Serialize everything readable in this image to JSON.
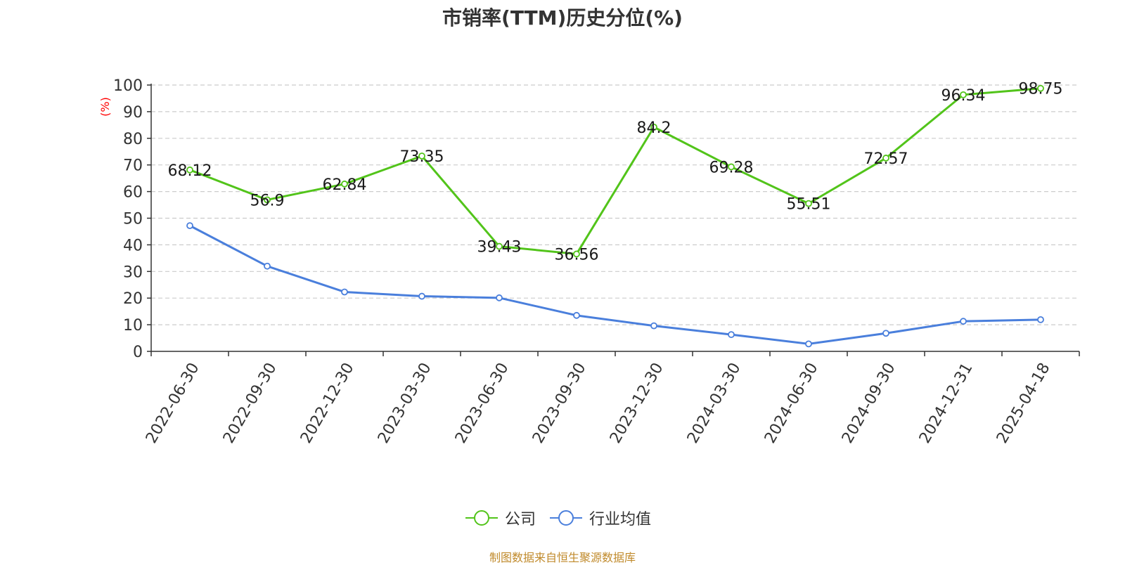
{
  "chart_data": {
    "type": "line",
    "title": "市销率(TTM)历史分位(%)",
    "ylabel": "(%)",
    "ylim": [
      0,
      100
    ],
    "yticks": [
      0,
      10,
      20,
      30,
      40,
      50,
      60,
      70,
      80,
      90,
      100
    ],
    "categories": [
      "2022-06-30",
      "2022-09-30",
      "2022-12-30",
      "2023-03-30",
      "2023-06-30",
      "2023-09-30",
      "2023-12-30",
      "2024-03-30",
      "2024-06-30",
      "2024-09-30",
      "2024-12-31",
      "2025-04-18"
    ],
    "series": [
      {
        "name": "公司",
        "color": "#52c41a",
        "values": [
          68.12,
          56.9,
          62.84,
          73.35,
          39.43,
          36.56,
          84.2,
          69.28,
          55.51,
          72.57,
          96.34,
          98.75
        ],
        "labels": [
          "68.12",
          "56.9",
          "62.84",
          "73.35",
          "39.43",
          "36.56",
          "84.2",
          "69.28",
          "55.51",
          "72.57",
          "96.34",
          "98.75"
        ]
      },
      {
        "name": "行业均值",
        "color": "#4a7fdc",
        "values": [
          47.2,
          32.0,
          22.3,
          20.7,
          20.1,
          13.5,
          9.6,
          6.3,
          2.8,
          6.8,
          11.3,
          11.9
        ]
      }
    ],
    "grid": true,
    "legend_position": "bottom-center"
  },
  "source_text": "制图数据来自恒生聚源数据库"
}
